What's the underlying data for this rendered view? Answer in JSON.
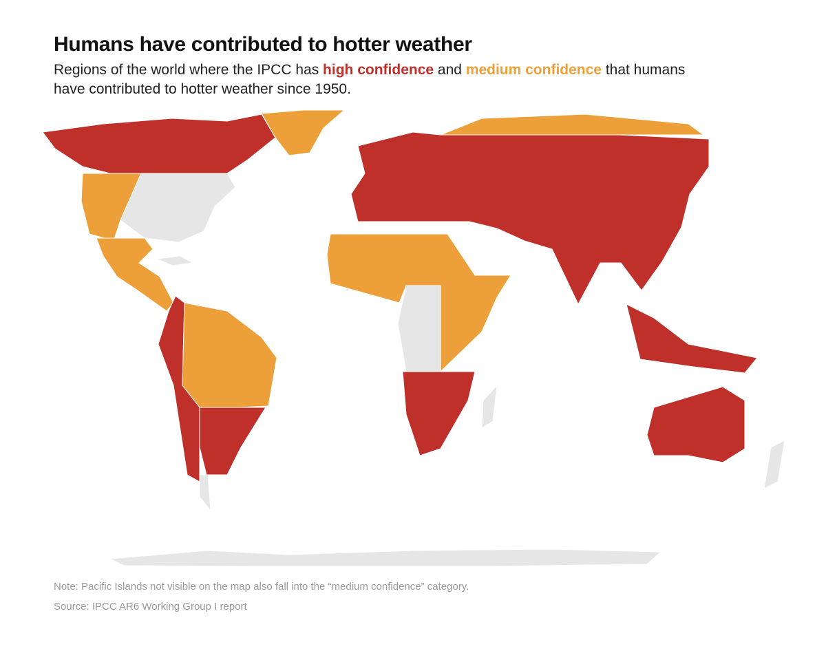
{
  "header": {
    "title": "Humans have contributed to hotter weather",
    "subtitle": [
      "Regions of the world where the IPCC has ",
      "high confidence",
      " and ",
      "medium confidence",
      " that humans have contributed to hotter weather since 1950."
    ]
  },
  "legend": {
    "high": {
      "label_part": 1,
      "color": "#c0302b"
    },
    "medium": {
      "label_part": 3,
      "color": "#eda03a"
    },
    "none": {
      "color": "#e6e6e6"
    }
  },
  "footer": {
    "note": "Note: Pacific Islands not visible on the map also fall into the “medium confidence” category.",
    "source": "Source: IPCC AR6 Working Group I report"
  }
}
